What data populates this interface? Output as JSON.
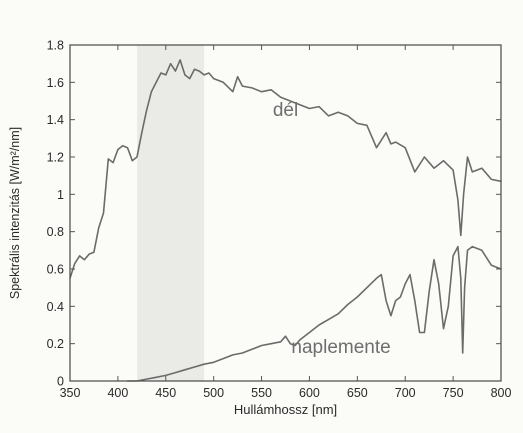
{
  "chart_data": {
    "type": "line",
    "xlabel": "Hullámhossz [nm]",
    "ylabel": "Spektrális intenzitás [W/m²/nm]",
    "xlim": [
      350,
      800
    ],
    "ylim": [
      0,
      1.8
    ],
    "xticks": [
      350,
      400,
      450,
      500,
      550,
      600,
      650,
      700,
      750,
      800
    ],
    "yticks": [
      0,
      0.2,
      0.4,
      0.6,
      0.8,
      1,
      1.2,
      1.4,
      1.6,
      1.8
    ],
    "ytick_labels": [
      "0",
      "0.2",
      "0.4",
      "0.6",
      "0.8",
      "1",
      "1.2",
      "1.4",
      "1.6",
      "1.8"
    ],
    "grid": false,
    "shaded_band": {
      "x_start": 420,
      "x_end": 490,
      "color": "#e6e6e2"
    },
    "series": [
      {
        "name": "dél",
        "color": "#6b6b6b",
        "x": [
          350,
          355,
          360,
          365,
          370,
          375,
          380,
          385,
          390,
          395,
          400,
          405,
          410,
          415,
          420,
          425,
          430,
          435,
          440,
          445,
          450,
          455,
          460,
          465,
          470,
          475,
          480,
          485,
          490,
          495,
          500,
          510,
          520,
          525,
          530,
          540,
          550,
          560,
          570,
          580,
          590,
          600,
          610,
          620,
          630,
          640,
          650,
          660,
          670,
          680,
          685,
          690,
          700,
          710,
          720,
          730,
          740,
          750,
          755,
          758,
          761,
          765,
          770,
          780,
          790,
          800
        ],
        "y": [
          0.55,
          0.63,
          0.67,
          0.65,
          0.68,
          0.69,
          0.82,
          0.9,
          1.19,
          1.17,
          1.24,
          1.26,
          1.25,
          1.18,
          1.2,
          1.33,
          1.45,
          1.55,
          1.6,
          1.65,
          1.64,
          1.7,
          1.66,
          1.72,
          1.64,
          1.62,
          1.67,
          1.66,
          1.64,
          1.65,
          1.62,
          1.6,
          1.55,
          1.63,
          1.58,
          1.57,
          1.55,
          1.56,
          1.52,
          1.5,
          1.48,
          1.46,
          1.47,
          1.42,
          1.44,
          1.42,
          1.38,
          1.37,
          1.25,
          1.33,
          1.27,
          1.28,
          1.25,
          1.12,
          1.2,
          1.14,
          1.18,
          1.13,
          0.97,
          0.78,
          1.0,
          1.2,
          1.12,
          1.14,
          1.08,
          1.07
        ]
      },
      {
        "name": "naplemente",
        "color": "#6b6b6b",
        "x": [
          410,
          420,
          430,
          440,
          450,
          460,
          470,
          480,
          490,
          500,
          510,
          520,
          530,
          540,
          550,
          560,
          570,
          575,
          580,
          585,
          590,
          600,
          610,
          620,
          630,
          640,
          650,
          660,
          670,
          675,
          680,
          685,
          690,
          695,
          700,
          705,
          710,
          715,
          720,
          725,
          730,
          735,
          740,
          745,
          750,
          755,
          758,
          760,
          762,
          765,
          770,
          780,
          790,
          800
        ],
        "y": [
          0.0,
          0.0,
          0.01,
          0.02,
          0.03,
          0.045,
          0.06,
          0.075,
          0.09,
          0.1,
          0.12,
          0.14,
          0.15,
          0.17,
          0.19,
          0.2,
          0.21,
          0.24,
          0.2,
          0.19,
          0.22,
          0.26,
          0.3,
          0.33,
          0.36,
          0.41,
          0.45,
          0.5,
          0.55,
          0.57,
          0.43,
          0.35,
          0.43,
          0.45,
          0.52,
          0.57,
          0.43,
          0.26,
          0.26,
          0.48,
          0.65,
          0.52,
          0.28,
          0.4,
          0.67,
          0.72,
          0.55,
          0.15,
          0.5,
          0.7,
          0.72,
          0.7,
          0.62,
          0.6
        ]
      }
    ],
    "annotations": [
      {
        "text": "dél",
        "x": 575,
        "y": 1.42
      },
      {
        "text": "naplemente",
        "x": 633,
        "y": 0.15
      }
    ]
  }
}
